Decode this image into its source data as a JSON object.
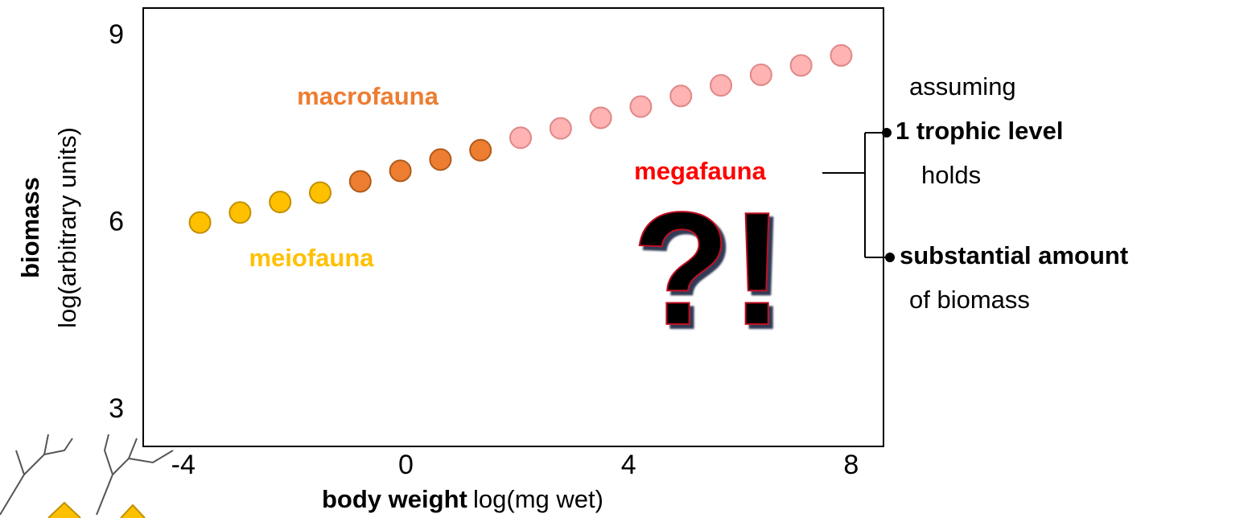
{
  "chart_data": {
    "type": "scatter",
    "xlabel_bold": "body weight",
    "xlabel": "log(mg wet)",
    "ylabel_bold": "biomass",
    "ylabel": "log(arbitrary units)",
    "xlim": [
      -4.72,
      8.58
    ],
    "ylim": [
      2.42,
      9.45
    ],
    "xticks": [
      -4,
      0,
      4,
      8
    ],
    "yticks": [
      3,
      6,
      9
    ],
    "series": [
      {
        "name": "meiofauna",
        "color": "#ffc000",
        "x": [
          -3.7,
          -2.98,
          -2.26,
          -1.54
        ],
        "values": [
          6.01,
          6.17,
          6.34,
          6.49
        ]
      },
      {
        "name": "macrofauna",
        "color": "#ed7d31",
        "x": [
          -0.82,
          -0.1,
          0.62,
          1.34
        ],
        "values": [
          6.67,
          6.84,
          7.02,
          7.17
        ]
      },
      {
        "name": "megafauna",
        "color": "#ffb3b3",
        "x": [
          2.06,
          2.78,
          3.5,
          4.22,
          4.94,
          5.66,
          6.38,
          7.1,
          7.82
        ],
        "values": [
          7.37,
          7.52,
          7.69,
          7.87,
          8.04,
          8.21,
          8.38,
          8.53,
          8.69
        ]
      }
    ],
    "annotation": "?!",
    "note": {
      "intro": "assuming",
      "point1_bold": "1 trophic level",
      "point1_rest": "holds",
      "point2_bold": "substantial amount",
      "point2_rest": "of biomass"
    }
  }
}
